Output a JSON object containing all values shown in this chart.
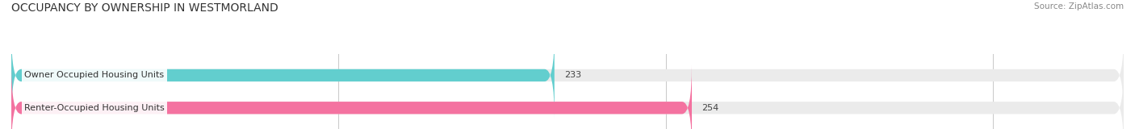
{
  "title": "OCCUPANCY BY OWNERSHIP IN WESTMORLAND",
  "source": "Source: ZipAtlas.com",
  "categories": [
    "Owner Occupied Housing Units",
    "Renter-Occupied Housing Units"
  ],
  "values": [
    233,
    254
  ],
  "bar_colors": [
    "#62cece",
    "#f472a0"
  ],
  "bar_bg_color": "#ebebeb",
  "xlim_min": 150,
  "xlim_max": 320,
  "xticks": [
    200,
    250,
    300
  ],
  "title_fontsize": 10,
  "label_fontsize": 8,
  "value_fontsize": 8,
  "source_fontsize": 7.5,
  "background_color": "#ffffff",
  "bar_height": 0.38
}
